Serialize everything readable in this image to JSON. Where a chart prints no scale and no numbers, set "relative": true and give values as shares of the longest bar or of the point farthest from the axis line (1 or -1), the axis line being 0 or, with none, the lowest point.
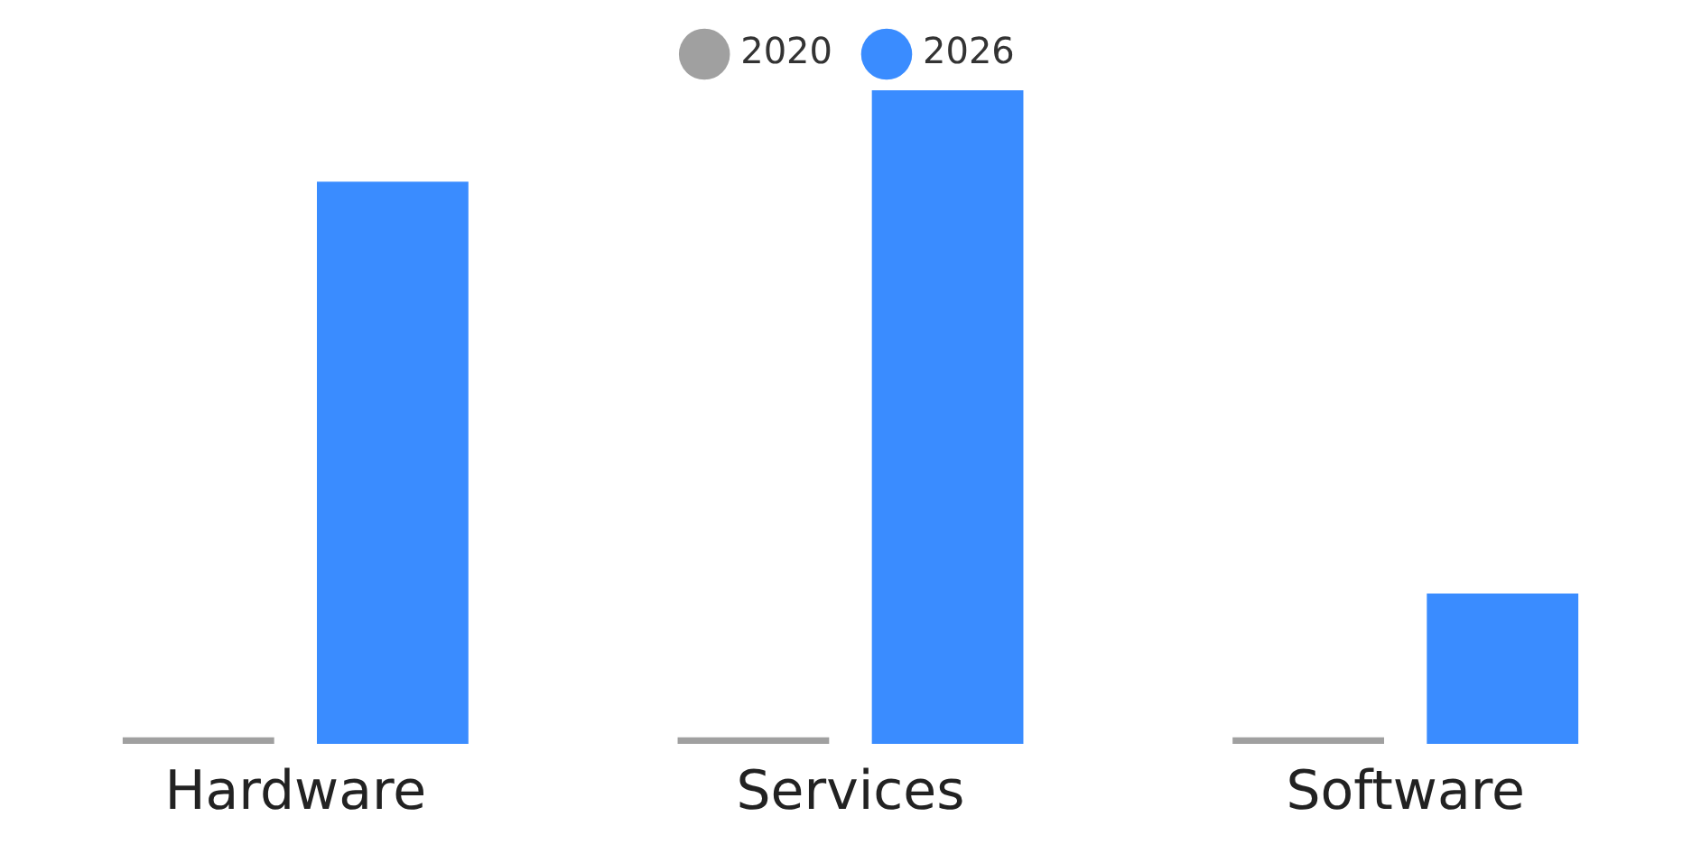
{
  "chart_data": {
    "type": "bar",
    "relative": true,
    "categories": [
      "Hardware",
      "Services",
      "Software"
    ],
    "series": [
      {
        "name": "2020",
        "color": "#a0a0a0",
        "values": [
          0.01,
          0.01,
          0.01
        ]
      },
      {
        "name": "2026",
        "color": "#3a8cff",
        "values": [
          0.86,
          1,
          0.23
        ]
      }
    ],
    "legend": "top",
    "grid": false
  }
}
